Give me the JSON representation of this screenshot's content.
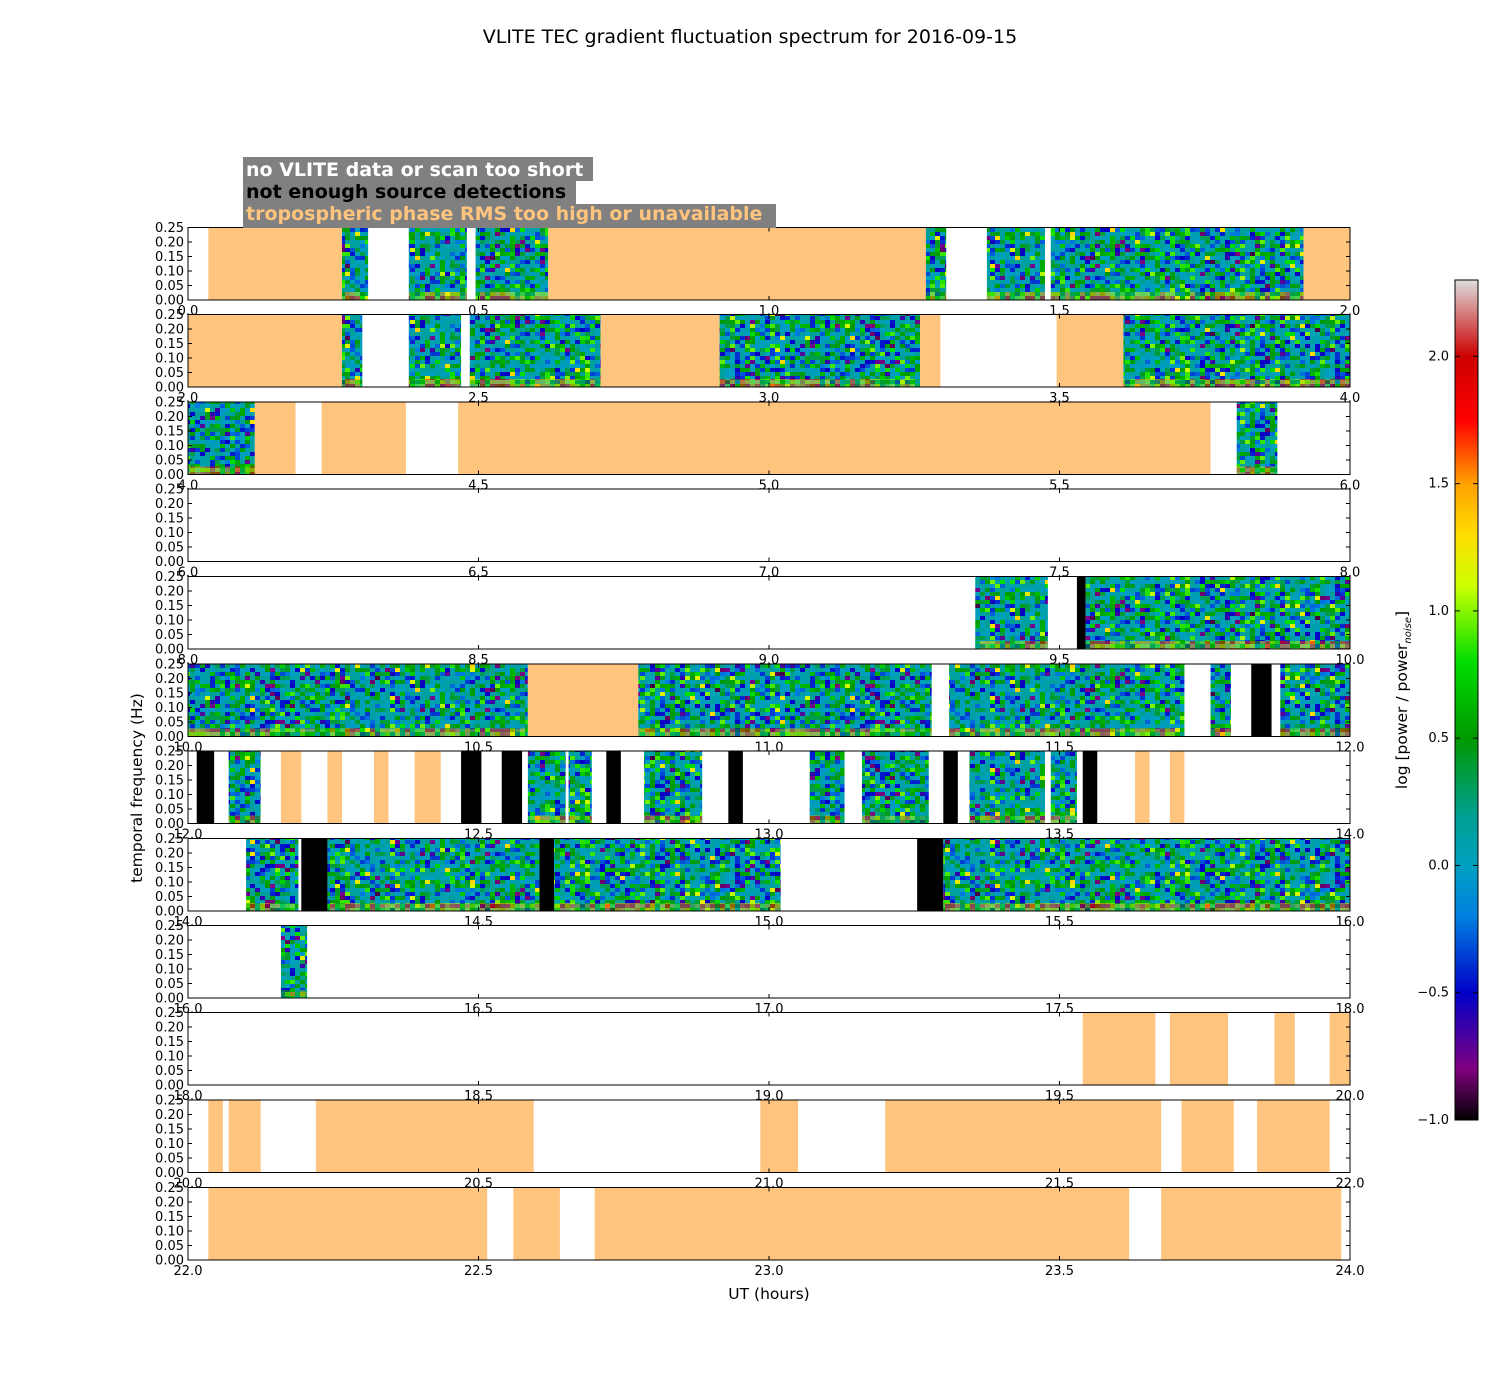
{
  "chart_data": {
    "type": "heatmap",
    "title": "VLITE TEC gradient fluctuation spectrum for 2016-09-15",
    "xlabel": "UT (hours)",
    "ylabel": "temporal frequency (Hz)",
    "ylim": [
      0,
      0.25
    ],
    "yticks": [
      "0.00",
      "0.05",
      "0.10",
      "0.15",
      "0.20",
      "0.25"
    ],
    "colorbar": {
      "label": "log [power / power",
      "label_sub": "noise",
      "label_end": "]",
      "range": [
        -1.0,
        2.3
      ],
      "ticks": [
        "−1.0",
        "−0.5",
        "0.0",
        "0.5",
        "1.0",
        "1.5",
        "2.0"
      ],
      "tick_values": [
        -1.0,
        -0.5,
        0.0,
        0.5,
        1.0,
        1.5,
        2.0
      ],
      "stops": [
        {
          "v": -1.0,
          "color": "#000000"
        },
        {
          "v": -0.8,
          "color": "#800080"
        },
        {
          "v": -0.5,
          "color": "#0000c8"
        },
        {
          "v": -0.2,
          "color": "#0080e0"
        },
        {
          "v": 0.0,
          "color": "#00a0c0"
        },
        {
          "v": 0.2,
          "color": "#00a090"
        },
        {
          "v": 0.5,
          "color": "#009900"
        },
        {
          "v": 0.8,
          "color": "#00dd00"
        },
        {
          "v": 1.1,
          "color": "#ccff00"
        },
        {
          "v": 1.3,
          "color": "#ffdd00"
        },
        {
          "v": 1.5,
          "color": "#ffa000"
        },
        {
          "v": 1.75,
          "color": "#ff0000"
        },
        {
          "v": 2.0,
          "color": "#cc0000"
        },
        {
          "v": 2.3,
          "color": "#dddddd"
        }
      ]
    },
    "legend": [
      {
        "text": "no VLITE data or scan too short",
        "color": "#ffffff"
      },
      {
        "text": "not enough source detections",
        "color": "#000000"
      },
      {
        "text": "tropospheric phase RMS too high or unavailable",
        "color": "#ffc47e"
      }
    ],
    "colors": {
      "tropo": "#ffc47e",
      "nodet": "#000000",
      "legend_bg": "#808080"
    },
    "panels": [
      {
        "xrange": [
          0.0,
          2.0
        ],
        "xticks": [
          "0.0",
          "0.5",
          "1.0",
          "1.5",
          "2.0"
        ],
        "segments": [
          {
            "kind": "tropo",
            "from": 0.035,
            "to": 0.265
          },
          {
            "kind": "data",
            "from": 0.265,
            "to": 0.31
          },
          {
            "kind": "data",
            "from": 0.38,
            "to": 0.48
          },
          {
            "kind": "data",
            "from": 0.495,
            "to": 0.62
          },
          {
            "kind": "tropo",
            "from": 0.62,
            "to": 1.27
          },
          {
            "kind": "data",
            "from": 1.27,
            "to": 1.305
          },
          {
            "kind": "data",
            "from": 1.375,
            "to": 1.475
          },
          {
            "kind": "data",
            "from": 1.485,
            "to": 1.92
          },
          {
            "kind": "tropo",
            "from": 1.92,
            "to": 2.0
          }
        ]
      },
      {
        "xrange": [
          2.0,
          4.0
        ],
        "xticks": [
          "2.0",
          "2.5",
          "3.0",
          "3.5",
          "4.0"
        ],
        "segments": [
          {
            "kind": "tropo",
            "from": 2.0,
            "to": 2.265
          },
          {
            "kind": "data",
            "from": 2.265,
            "to": 2.3
          },
          {
            "kind": "data",
            "from": 2.38,
            "to": 2.47
          },
          {
            "kind": "data",
            "from": 2.485,
            "to": 2.71
          },
          {
            "kind": "tropo",
            "from": 2.71,
            "to": 2.915
          },
          {
            "kind": "data",
            "from": 2.915,
            "to": 3.26
          },
          {
            "kind": "tropo",
            "from": 3.26,
            "to": 3.295
          },
          {
            "kind": "tropo",
            "from": 3.495,
            "to": 3.61
          },
          {
            "kind": "data",
            "from": 3.61,
            "to": 4.0
          }
        ]
      },
      {
        "xrange": [
          4.0,
          6.0
        ],
        "xticks": [
          "4.0",
          "4.5",
          "5.0",
          "5.5",
          "6.0"
        ],
        "segments": [
          {
            "kind": "data",
            "from": 4.0,
            "to": 4.115
          },
          {
            "kind": "tropo",
            "from": 4.115,
            "to": 4.185
          },
          {
            "kind": "tropo",
            "from": 4.23,
            "to": 4.375
          },
          {
            "kind": "tropo",
            "from": 4.465,
            "to": 5.76
          },
          {
            "kind": "data",
            "from": 5.805,
            "to": 5.875
          }
        ]
      },
      {
        "xrange": [
          6.0,
          8.0
        ],
        "xticks": [
          "6.0",
          "6.5",
          "7.0",
          "7.5",
          "8.0"
        ],
        "segments": []
      },
      {
        "xrange": [
          8.0,
          10.0
        ],
        "xticks": [
          "8.0",
          "8.5",
          "9.0",
          "9.5",
          "10.0"
        ],
        "segments": [
          {
            "kind": "data",
            "from": 9.355,
            "to": 9.48
          },
          {
            "kind": "nodet",
            "from": 9.53,
            "to": 9.545
          },
          {
            "kind": "data",
            "from": 9.545,
            "to": 10.0
          }
        ]
      },
      {
        "xrange": [
          10.0,
          12.0
        ],
        "xticks": [
          "10.0",
          "10.5",
          "11.0",
          "11.5",
          "12.0"
        ],
        "segments": [
          {
            "kind": "data",
            "from": 10.0,
            "to": 10.585
          },
          {
            "kind": "tropo",
            "from": 10.585,
            "to": 10.775
          },
          {
            "kind": "data",
            "from": 10.775,
            "to": 11.28
          },
          {
            "kind": "data",
            "from": 11.31,
            "to": 11.715
          },
          {
            "kind": "data",
            "from": 11.76,
            "to": 11.795
          },
          {
            "kind": "nodet",
            "from": 11.83,
            "to": 11.865
          },
          {
            "kind": "data",
            "from": 11.88,
            "to": 12.0
          }
        ]
      },
      {
        "xrange": [
          12.0,
          14.0
        ],
        "xticks": [
          "12.0",
          "12.5",
          "13.0",
          "13.5",
          "14.0"
        ],
        "segments": [
          {
            "kind": "nodet",
            "from": 12.015,
            "to": 12.045
          },
          {
            "kind": "data",
            "from": 12.07,
            "to": 12.125
          },
          {
            "kind": "tropo",
            "from": 12.16,
            "to": 12.195
          },
          {
            "kind": "tropo",
            "from": 12.24,
            "to": 12.265
          },
          {
            "kind": "tropo",
            "from": 12.32,
            "to": 12.345
          },
          {
            "kind": "tropo",
            "from": 12.39,
            "to": 12.435
          },
          {
            "kind": "nodet",
            "from": 12.47,
            "to": 12.505
          },
          {
            "kind": "nodet",
            "from": 12.54,
            "to": 12.575
          },
          {
            "kind": "data",
            "from": 12.585,
            "to": 12.65
          },
          {
            "kind": "data",
            "from": 12.655,
            "to": 12.695
          },
          {
            "kind": "nodet",
            "from": 12.72,
            "to": 12.745
          },
          {
            "kind": "data",
            "from": 12.785,
            "to": 12.885
          },
          {
            "kind": "nodet",
            "from": 12.93,
            "to": 12.955
          },
          {
            "kind": "data",
            "from": 13.07,
            "to": 13.13
          },
          {
            "kind": "data",
            "from": 13.16,
            "to": 13.275
          },
          {
            "kind": "nodet",
            "from": 13.3,
            "to": 13.325
          },
          {
            "kind": "data",
            "from": 13.345,
            "to": 13.475
          },
          {
            "kind": "data",
            "from": 13.485,
            "to": 13.53
          },
          {
            "kind": "nodet",
            "from": 13.54,
            "to": 13.565
          },
          {
            "kind": "tropo",
            "from": 13.63,
            "to": 13.655
          },
          {
            "kind": "tropo",
            "from": 13.69,
            "to": 13.715
          }
        ]
      },
      {
        "xrange": [
          14.0,
          16.0
        ],
        "xticks": [
          "14.0",
          "14.5",
          "15.0",
          "15.5",
          "16.0"
        ],
        "segments": [
          {
            "kind": "data",
            "from": 14.1,
            "to": 14.19
          },
          {
            "kind": "nodet",
            "from": 14.195,
            "to": 14.24
          },
          {
            "kind": "data",
            "from": 14.24,
            "to": 14.605
          },
          {
            "kind": "nodet",
            "from": 14.605,
            "to": 14.63
          },
          {
            "kind": "data",
            "from": 14.63,
            "to": 15.02
          },
          {
            "kind": "nodet",
            "from": 15.255,
            "to": 15.3
          },
          {
            "kind": "data",
            "from": 15.3,
            "to": 16.0
          }
        ]
      },
      {
        "xrange": [
          16.0,
          18.0
        ],
        "xticks": [
          "16.0",
          "16.5",
          "17.0",
          "17.5",
          "18.0"
        ],
        "segments": [
          {
            "kind": "data",
            "from": 16.16,
            "to": 16.205
          }
        ]
      },
      {
        "xrange": [
          18.0,
          20.0
        ],
        "xticks": [
          "18.0",
          "18.5",
          "19.0",
          "19.5",
          "20.0"
        ],
        "segments": [
          {
            "kind": "tropo",
            "from": 19.54,
            "to": 19.665
          },
          {
            "kind": "tropo",
            "from": 19.69,
            "to": 19.79
          },
          {
            "kind": "tropo",
            "from": 19.87,
            "to": 19.905
          },
          {
            "kind": "tropo",
            "from": 19.965,
            "to": 20.0
          }
        ]
      },
      {
        "xrange": [
          20.0,
          22.0
        ],
        "xticks": [
          "20.0",
          "20.5",
          "21.0",
          "21.5",
          "22.0"
        ],
        "segments": [
          {
            "kind": "tropo",
            "from": 20.035,
            "to": 20.06
          },
          {
            "kind": "tropo",
            "from": 20.07,
            "to": 20.125
          },
          {
            "kind": "tropo",
            "from": 20.22,
            "to": 20.595
          },
          {
            "kind": "tropo",
            "from": 20.985,
            "to": 21.05
          },
          {
            "kind": "tropo",
            "from": 21.2,
            "to": 21.675
          },
          {
            "kind": "tropo",
            "from": 21.71,
            "to": 21.8
          },
          {
            "kind": "tropo",
            "from": 21.84,
            "to": 21.965
          }
        ]
      },
      {
        "xrange": [
          22.0,
          24.0
        ],
        "xticks": [
          "22.0",
          "22.5",
          "23.0",
          "23.5",
          "24.0"
        ],
        "segments": [
          {
            "kind": "tropo",
            "from": 22.035,
            "to": 22.515
          },
          {
            "kind": "tropo",
            "from": 22.56,
            "to": 22.64
          },
          {
            "kind": "tropo",
            "from": 22.7,
            "to": 23.62
          },
          {
            "kind": "tropo",
            "from": 23.675,
            "to": 23.985
          }
        ]
      }
    ]
  }
}
